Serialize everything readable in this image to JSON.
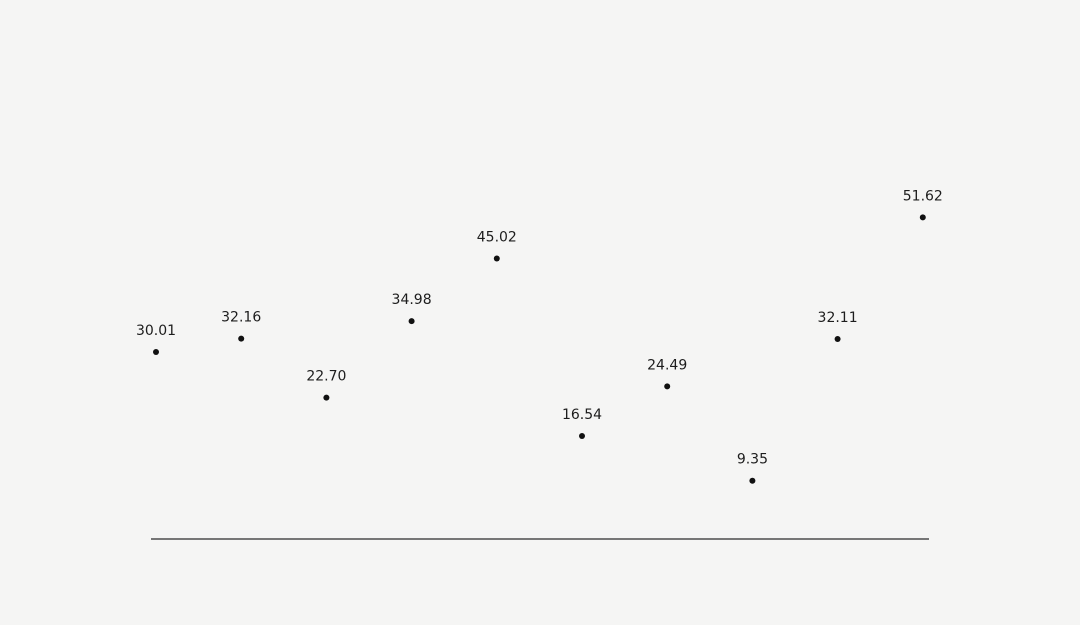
{
  "chart_data": {
    "type": "scatter",
    "title": "",
    "xlabel": "",
    "ylabel": "",
    "x": [
      1,
      2,
      3,
      4,
      5,
      6,
      7,
      8,
      9,
      10
    ],
    "values": [
      30.01,
      32.16,
      22.7,
      34.98,
      45.02,
      16.54,
      24.49,
      9.35,
      32.11,
      51.62
    ],
    "labels": [
      "30.01",
      "32.16",
      "22.70",
      "34.98",
      "45.02",
      "16.54",
      "24.49",
      "9.35",
      "32.11",
      "51.62"
    ],
    "ylim": [
      0,
      70
    ],
    "grid": false,
    "legend": "none",
    "colors": {
      "background": "#f5f5f4",
      "point": "#111111",
      "axis": "#2b2b2b",
      "text": "#1d1d1d"
    }
  }
}
